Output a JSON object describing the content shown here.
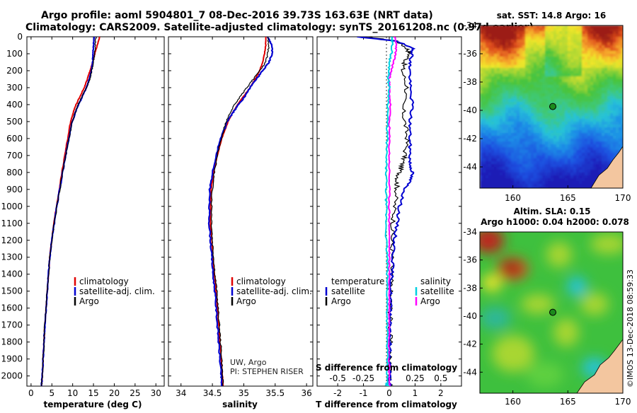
{
  "title": {
    "line1": "Argo profile: aoml 5904801_7 08-Dec-2016 39.73S 163.63E (NRT data)",
    "line2": "Climatology: CARS2009. Satellite-adjusted climatology: synTS_20161208.nc (0.97d earlier)"
  },
  "depth_ticks": [
    "0",
    "100",
    "200",
    "300",
    "400",
    "500",
    "600",
    "700",
    "800",
    "900",
    "1000",
    "1100",
    "1200",
    "1300",
    "1400",
    "1500",
    "1600",
    "1700",
    "1800",
    "1900",
    "2000"
  ],
  "panels": {
    "temperature": {
      "xlabel": "temperature (deg C)",
      "ticks": [
        "0",
        "5",
        "10",
        "15",
        "20",
        "25",
        "30"
      ],
      "legend": [
        "climatology",
        "satellite-adj. clim.",
        "Argo"
      ]
    },
    "salinity": {
      "xlabel": "salinity",
      "ticks": [
        "34",
        "34.5",
        "35",
        "35.5",
        "36"
      ],
      "legend": [
        "climatology",
        "satellite-adj. clim.",
        "Argo"
      ],
      "note1": "UW, Argo",
      "note2": "PI: STEPHEN RISER"
    },
    "difference": {
      "xlabel": "T difference from climatology",
      "ticks": [
        "-2",
        "-1",
        "0",
        "1",
        "2"
      ],
      "top_label": "S difference from climatology",
      "s_ticks": [
        "-0.5",
        "-0.25",
        "0",
        "0.25",
        "0.5"
      ],
      "legend_t_title": "temperature",
      "legend_t": [
        "satellite",
        "Argo"
      ],
      "legend_s_title": "salinity",
      "legend_s": [
        "satellite",
        "Argo"
      ]
    }
  },
  "maps": {
    "sst_title": "sat. SST: 14.8 Argo: 16",
    "sla_title1": "Altim. SLA: 0.15",
    "sla_title2": "Argo h1000: 0.04 h2000: 0.078",
    "lat_ticks": [
      "-34",
      "-36",
      "-38",
      "-40",
      "-42",
      "-44"
    ],
    "lon_ticks": [
      "160",
      "165",
      "170"
    ]
  },
  "watermark": "©IMOS 13-Dec-2018 08:59:33",
  "colors": {
    "climatology": "#e00000",
    "satellite": "#0000d0",
    "argo": "#000000",
    "sat_salinity": "#00d0e0",
    "argo_salinity": "#ff00ff"
  },
  "chart_data": [
    {
      "type": "line",
      "title": "temperature profile",
      "xlabel": "temperature (deg C)",
      "ylabel": "depth",
      "xlim": [
        -1,
        32
      ],
      "ylim": [
        2060,
        0
      ],
      "series": [
        {
          "name": "climatology",
          "x": [
            16.5,
            15.9,
            15.3,
            14.8,
            14.2,
            13.5,
            12.8,
            11.8,
            10.8,
            10.1,
            9.5,
            8.8,
            8.1,
            7.4,
            6.8,
            6.1,
            5.5,
            5.0,
            4.5,
            4.2,
            3.9,
            3.6,
            3.3,
            3.1,
            2.9,
            2.7,
            2.5
          ],
          "depth": [
            0,
            50,
            100,
            150,
            200,
            250,
            300,
            350,
            400,
            450,
            500,
            600,
            700,
            800,
            900,
            1000,
            1100,
            1200,
            1300,
            1400,
            1500,
            1600,
            1700,
            1800,
            1900,
            2000,
            2060
          ]
        },
        {
          "name": "satellite-adj. clim.",
          "x": [
            15.2,
            15.0,
            14.9,
            14.8,
            14.5,
            14.0,
            13.3,
            12.4,
            11.4,
            10.6,
            9.9,
            9.1,
            8.3,
            7.6,
            6.9,
            6.2,
            5.6,
            5.0,
            4.5,
            4.2,
            3.9,
            3.6,
            3.3,
            3.1,
            2.9,
            2.7,
            2.5
          ],
          "depth": [
            0,
            50,
            100,
            150,
            200,
            250,
            300,
            350,
            400,
            450,
            500,
            600,
            700,
            800,
            900,
            1000,
            1100,
            1200,
            1300,
            1400,
            1500,
            1600,
            1700,
            1800,
            1900,
            2000,
            2060
          ]
        },
        {
          "name": "Argo",
          "x": [
            15.6,
            15.4,
            15.3,
            15.0,
            14.6,
            14.1,
            13.3,
            12.3,
            11.3,
            10.6,
            9.9,
            9.1,
            8.3,
            7.6,
            6.9,
            6.2,
            5.6,
            5.0,
            4.5,
            4.2,
            3.9,
            3.6,
            3.3,
            3.1,
            2.9,
            2.7,
            2.5
          ],
          "depth": [
            0,
            50,
            100,
            150,
            200,
            250,
            300,
            350,
            400,
            450,
            500,
            600,
            700,
            800,
            900,
            1000,
            1100,
            1200,
            1300,
            1400,
            1500,
            1600,
            1700,
            1800,
            1900,
            2000,
            2060
          ]
        }
      ]
    },
    {
      "type": "line",
      "title": "salinity profile",
      "xlabel": "salinity",
      "ylabel": "depth",
      "xlim": [
        33.8,
        36.1
      ],
      "ylim": [
        2060,
        0
      ],
      "series": [
        {
          "name": "climatology",
          "x": [
            35.35,
            35.35,
            35.33,
            35.3,
            35.25,
            35.18,
            35.1,
            35.0,
            34.9,
            34.82,
            34.75,
            34.65,
            34.58,
            34.52,
            34.48,
            34.47,
            34.47,
            34.49,
            34.51,
            34.53,
            34.56,
            34.58,
            34.6,
            34.62,
            34.64,
            34.66,
            34.67
          ],
          "depth": [
            0,
            50,
            100,
            150,
            200,
            250,
            300,
            350,
            400,
            450,
            500,
            600,
            700,
            800,
            900,
            1000,
            1100,
            1200,
            1300,
            1400,
            1500,
            1600,
            1700,
            1800,
            1900,
            2000,
            2060
          ]
        },
        {
          "name": "satellite-adj. clim.",
          "x": [
            35.38,
            35.45,
            35.45,
            35.4,
            35.3,
            35.2,
            35.1,
            35.02,
            34.92,
            34.82,
            34.74,
            34.63,
            34.56,
            34.5,
            34.46,
            34.45,
            34.45,
            34.47,
            34.49,
            34.51,
            34.54,
            34.56,
            34.58,
            34.6,
            34.62,
            34.64,
            34.65
          ],
          "depth": [
            0,
            50,
            100,
            150,
            200,
            250,
            300,
            350,
            400,
            450,
            500,
            600,
            700,
            800,
            900,
            1000,
            1100,
            1200,
            1300,
            1400,
            1500,
            1600,
            1700,
            1800,
            1900,
            2000,
            2060
          ]
        },
        {
          "name": "Argo",
          "x": [
            35.38,
            35.4,
            35.38,
            35.35,
            35.25,
            35.15,
            35.05,
            34.95,
            34.85,
            34.78,
            34.72,
            34.64,
            34.58,
            34.53,
            34.5,
            34.49,
            34.49,
            34.5,
            34.52,
            34.54,
            34.57,
            34.59,
            34.61,
            34.63,
            34.65,
            34.66,
            34.67
          ],
          "depth": [
            0,
            50,
            100,
            150,
            200,
            250,
            300,
            350,
            400,
            450,
            500,
            600,
            700,
            800,
            900,
            1000,
            1100,
            1200,
            1300,
            1400,
            1500,
            1600,
            1700,
            1800,
            1900,
            2000,
            2060
          ]
        }
      ]
    },
    {
      "type": "line",
      "title": "difference from climatology",
      "xlabel": "T difference from climatology",
      "x2label": "S difference from climatology",
      "ylabel": "depth",
      "xlim": [
        -2.8,
        2.8
      ],
      "ylim": [
        2060,
        0
      ],
      "series": [
        {
          "name": "temperature satellite",
          "x": [
            -1.3,
            0.3,
            0.9,
            0.9,
            0.8,
            0.8,
            0.8,
            0.9,
            0.8,
            0.8,
            0.8,
            0.8,
            0.9,
            0.8,
            0.6,
            0.4,
            0.3,
            0.2,
            0.15,
            0.1,
            0.05,
            0.05,
            0.05,
            0.03,
            0.02,
            0.02,
            0.02
          ],
          "depth": [
            0,
            25,
            70,
            100,
            150,
            200,
            300,
            400,
            500,
            600,
            700,
            750,
            800,
            850,
            900,
            1000,
            1100,
            1200,
            1300,
            1400,
            1500,
            1600,
            1700,
            1800,
            1900,
            2000,
            2060
          ]
        },
        {
          "name": "temperature Argo",
          "x": [
            -0.9,
            0.3,
            0.7,
            0.8,
            0.6,
            0.5,
            0.7,
            0.5,
            0.6,
            0.7,
            0.6,
            0.5,
            0.4,
            0.3,
            0.3,
            0.2,
            0.15,
            0.1,
            0.1,
            0.08,
            0.05,
            0.05,
            0.04,
            0.03,
            0.02,
            0.02,
            0.02
          ],
          "depth": [
            0,
            25,
            70,
            100,
            150,
            200,
            300,
            400,
            500,
            600,
            700,
            750,
            800,
            850,
            900,
            1000,
            1100,
            1200,
            1300,
            1400,
            1500,
            1600,
            1700,
            1800,
            1900,
            2000,
            2060
          ]
        },
        {
          "name": "salinity satellite",
          "x_salinity": [
            0.02,
            0.03,
            0.02,
            0.0,
            0.0,
            -0.01,
            0.0,
            -0.01,
            -0.02,
            -0.02,
            -0.03,
            -0.03,
            -0.03,
            -0.03,
            -0.03,
            -0.03,
            -0.02,
            -0.02,
            -0.02,
            -0.02,
            -0.02,
            -0.02,
            -0.02,
            -0.02,
            -0.02,
            -0.02
          ],
          "depth": [
            0,
            50,
            100,
            150,
            200,
            250,
            300,
            400,
            500,
            600,
            700,
            800,
            900,
            1000,
            1100,
            1200,
            1300,
            1400,
            1500,
            1600,
            1700,
            1800,
            1900,
            2000,
            2040,
            2060
          ]
        },
        {
          "name": "salinity Argo",
          "x_salinity": [
            0.05,
            0.07,
            0.06,
            0.04,
            0.02,
            0.0,
            0.0,
            0.01,
            0.0,
            0.0,
            0.0,
            0.0,
            0.0,
            0.0,
            0.0,
            0.0,
            0.0,
            0.0,
            0.0,
            0.0,
            0.0,
            0.0,
            0.0,
            0.0,
            0.0,
            0.0
          ],
          "depth": [
            0,
            50,
            100,
            150,
            200,
            250,
            300,
            400,
            500,
            600,
            700,
            800,
            900,
            1000,
            1100,
            1200,
            1300,
            1400,
            1500,
            1600,
            1700,
            1800,
            1900,
            2000,
            2040,
            2060
          ]
        }
      ]
    },
    {
      "type": "heatmap",
      "title": "sat. SST: 14.8 Argo: 16",
      "xlim": [
        157,
        170
      ],
      "ylim": [
        -45.5,
        -34
      ],
      "float_position": {
        "lon": 163.63,
        "lat": -39.73
      }
    },
    {
      "type": "heatmap",
      "title": "Altim. SLA: 0.15",
      "xlim": [
        157,
        170
      ],
      "ylim": [
        -45.5,
        -34
      ],
      "float_position": {
        "lon": 163.63,
        "lat": -39.73
      }
    }
  ]
}
